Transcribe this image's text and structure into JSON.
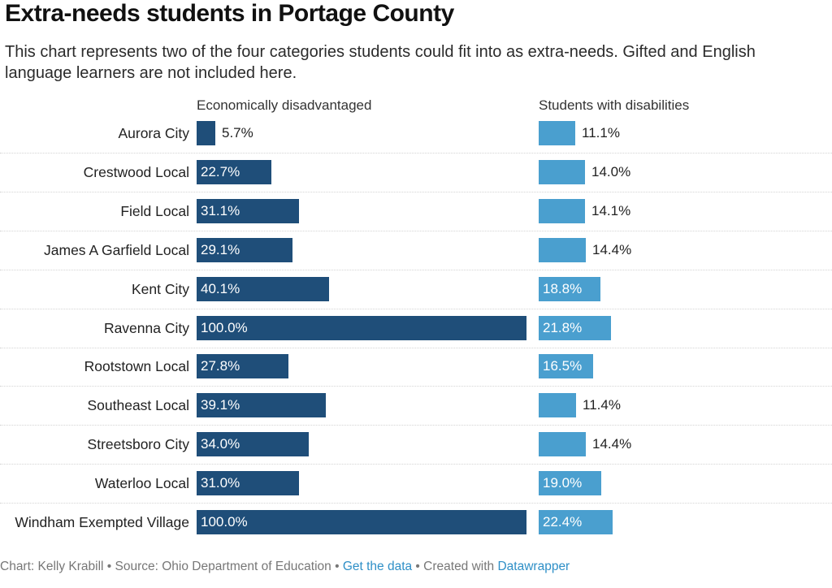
{
  "header": {
    "title": "Extra-needs students in Portage County",
    "subtitle": "This chart represents two of the four categories students could fit into as extra-needs. Gifted and English language learners are not included here."
  },
  "columns": {
    "econ_label": "Economically disadvantaged",
    "dis_label": "Students with disabilities"
  },
  "footer": {
    "credit": "Chart: Kelly Krabill • Source: Ohio Department of Education • ",
    "data_link": "Get the data",
    "created": " • Created with ",
    "tool_link": "Datawrapper"
  },
  "colors": {
    "econ": "#1f4e79",
    "disabilities": "#4a9fcf",
    "link": "#2e8fc7"
  },
  "chart_data": {
    "type": "bar",
    "orientation": "horizontal",
    "categories": [
      "Aurora City",
      "Crestwood Local",
      "Field Local",
      "James A Garfield Local",
      "Kent City",
      "Ravenna City",
      "Rootstown Local",
      "Southeast Local",
      "Streetsboro City",
      "Waterloo Local",
      "Windham Exempted Village"
    ],
    "series": [
      {
        "name": "Economically disadvantaged",
        "values": [
          5.7,
          22.7,
          31.1,
          29.1,
          40.1,
          100.0,
          27.8,
          39.1,
          34.0,
          31.0,
          100.0
        ],
        "labels": [
          "5.7%",
          "22.7%",
          "31.1%",
          "29.1%",
          "40.1%",
          "100.0%",
          "27.8%",
          "39.1%",
          "34.0%",
          "31.0%",
          "100.0%"
        ],
        "xlim": [
          0,
          100
        ]
      },
      {
        "name": "Students with disabilities",
        "values": [
          11.1,
          14.0,
          14.1,
          14.4,
          18.8,
          21.8,
          16.5,
          11.4,
          14.4,
          19.0,
          22.4
        ],
        "labels": [
          "11.1%",
          "14.0%",
          "14.1%",
          "14.4%",
          "18.8%",
          "21.8%",
          "16.5%",
          "11.4%",
          "14.4%",
          "19.0%",
          "22.4%"
        ],
        "xlim": [
          0,
          100
        ]
      }
    ]
  }
}
